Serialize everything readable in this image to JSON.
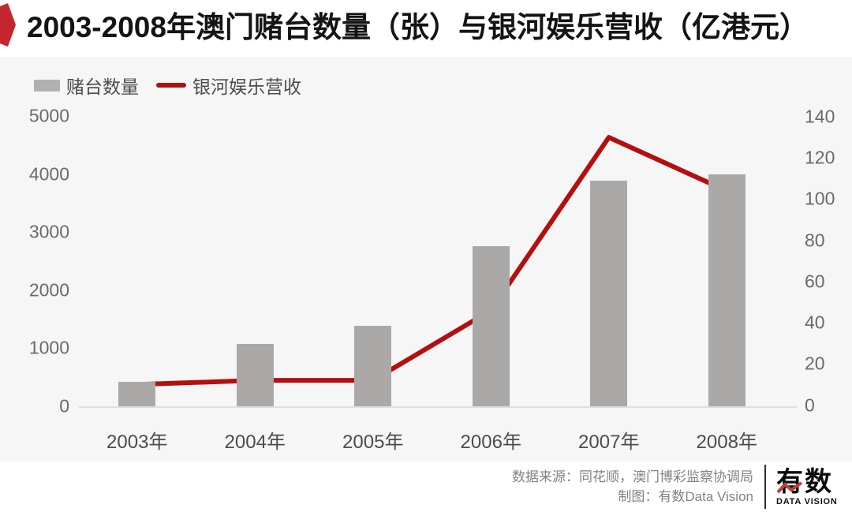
{
  "header": {
    "title": "2003-2008年澳门赌台数量（张）与银河娱乐营收（亿港元）"
  },
  "legend": {
    "bar_label": "赌台数量",
    "line_label": "银河娱乐营收"
  },
  "chart_data": {
    "type": "bar+line combo",
    "title": "2003-2008年澳门赌台数量（张）与银河娱乐营收（亿港元）",
    "categories": [
      "2003年",
      "2004年",
      "2005年",
      "2006年",
      "2007年",
      "2008年"
    ],
    "series": [
      {
        "name": "赌台数量",
        "type": "bar",
        "axis": "left",
        "unit": "张",
        "color": "#aba8a8",
        "values": [
          420,
          1080,
          1390,
          2760,
          3890,
          4000
        ]
      },
      {
        "name": "银河娱乐营收",
        "type": "line",
        "axis": "right",
        "unit": "亿港元",
        "color": "#b40f0f",
        "values": [
          10,
          12,
          12,
          46,
          130,
          104
        ]
      }
    ],
    "left_axis": {
      "ticks": [
        5000,
        4000,
        3000,
        2000,
        1000,
        0
      ],
      "range": [
        0,
        5000
      ]
    },
    "right_axis": {
      "ticks": [
        140,
        120,
        100,
        80,
        60,
        40,
        20,
        0
      ],
      "range": [
        0,
        140
      ]
    },
    "grid": false,
    "legend_position": "top-left"
  },
  "footer": {
    "source_line": "数据来源：同花顺，澳门博彩监察协调局",
    "credit_line": "制图：有数Data Vision",
    "logo_text": "有数",
    "logo_subtitle": "DATA VISION"
  },
  "colors": {
    "ribbon_red": "#c5262d",
    "line_red": "#b40f0f",
    "bar_gray": "#aba8a8",
    "panel_bg": "#f7f6f6",
    "baseline": "#dfdfdf",
    "tick_text": "#6a6a6a",
    "axis_text": "#4c4c4c",
    "footer_text": "#828282"
  }
}
